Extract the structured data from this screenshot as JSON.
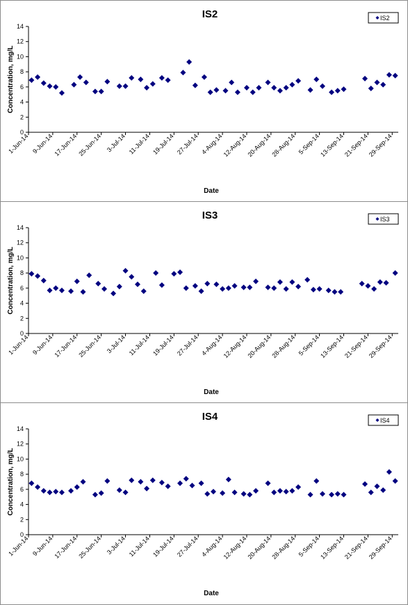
{
  "chart_data": [
    {
      "type": "scatter",
      "title": "IS2",
      "xlabel": "Date",
      "ylabel": "Concentration, mg/L",
      "ylim": [
        0,
        14
      ],
      "yticks": [
        "0",
        "2",
        "4",
        "6",
        "8",
        "10",
        "12",
        "14"
      ],
      "xlim": [
        "2014-06-01",
        "2014-10-01"
      ],
      "xticks": [
        "1-Jun-14",
        "9-Jun-14",
        "17-Jun-14",
        "25-Jun-14",
        "3-Jul-14",
        "11-Jul-14",
        "19-Jul-14",
        "27-Jul-14",
        "4-Aug-14",
        "12-Aug-14",
        "20-Aug-14",
        "28-Aug-14",
        "5-Sep-14",
        "13-Sep-14",
        "21-Sep-14",
        "29-Sep-14"
      ],
      "xtick_dates": [
        "2014-06-01",
        "2014-06-09",
        "2014-06-17",
        "2014-06-25",
        "2014-07-03",
        "2014-07-11",
        "2014-07-19",
        "2014-07-27",
        "2014-08-04",
        "2014-08-12",
        "2014-08-20",
        "2014-08-28",
        "2014-09-05",
        "2014-09-13",
        "2014-09-21",
        "2014-09-29"
      ],
      "grid": false,
      "legend": "top-right",
      "color": "#000080",
      "series": [
        {
          "name": "IS2",
          "x": [
            "2014-06-02",
            "2014-06-04",
            "2014-06-06",
            "2014-06-08",
            "2014-06-10",
            "2014-06-12",
            "2014-06-16",
            "2014-06-18",
            "2014-06-20",
            "2014-06-23",
            "2014-06-25",
            "2014-06-27",
            "2014-07-01",
            "2014-07-03",
            "2014-07-05",
            "2014-07-08",
            "2014-07-10",
            "2014-07-12",
            "2014-07-15",
            "2014-07-17",
            "2014-07-22",
            "2014-07-24",
            "2014-07-26",
            "2014-07-29",
            "2014-07-31",
            "2014-08-02",
            "2014-08-05",
            "2014-08-07",
            "2014-08-09",
            "2014-08-12",
            "2014-08-14",
            "2014-08-16",
            "2014-08-19",
            "2014-08-21",
            "2014-08-23",
            "2014-08-25",
            "2014-08-27",
            "2014-08-29",
            "2014-09-02",
            "2014-09-04",
            "2014-09-06",
            "2014-09-09",
            "2014-09-11",
            "2014-09-13",
            "2014-09-20",
            "2014-09-22",
            "2014-09-24",
            "2014-09-26",
            "2014-09-28",
            "2014-09-30"
          ],
          "y": [
            6.9,
            7.3,
            6.5,
            6.1,
            6.0,
            5.2,
            6.3,
            7.3,
            6.6,
            5.4,
            5.4,
            6.7,
            6.1,
            6.1,
            7.2,
            7.0,
            5.9,
            6.4,
            7.2,
            6.9,
            7.9,
            9.3,
            6.2,
            7.3,
            5.3,
            5.6,
            5.5,
            6.6,
            5.3,
            5.9,
            5.3,
            5.9,
            6.6,
            5.9,
            5.5,
            5.9,
            6.3,
            6.8,
            5.6,
            7.0,
            6.1,
            5.3,
            5.5,
            5.7,
            7.1,
            5.8,
            6.6,
            6.3,
            7.6,
            7.5
          ]
        }
      ]
    },
    {
      "type": "scatter",
      "title": "IS3",
      "xlabel": "Date",
      "ylabel": "Concentration, mg/L",
      "ylim": [
        0,
        14
      ],
      "yticks": [
        "0",
        "2",
        "4",
        "6",
        "8",
        "10",
        "12",
        "14"
      ],
      "xlim": [
        "2014-06-01",
        "2014-10-01"
      ],
      "xticks": [
        "1-Jun-14",
        "9-Jun-14",
        "17-Jun-14",
        "25-Jun-14",
        "3-Jul-14",
        "11-Jul-14",
        "19-Jul-14",
        "27-Jul-14",
        "4-Aug-14",
        "12-Aug-14",
        "20-Aug-14",
        "28-Aug-14",
        "5-Sep-14",
        "13-Sep-14",
        "21-Sep-14",
        "29-Sep-14"
      ],
      "xtick_dates": [
        "2014-06-01",
        "2014-06-09",
        "2014-06-17",
        "2014-06-25",
        "2014-07-03",
        "2014-07-11",
        "2014-07-19",
        "2014-07-27",
        "2014-08-04",
        "2014-08-12",
        "2014-08-20",
        "2014-08-28",
        "2014-09-05",
        "2014-09-13",
        "2014-09-21",
        "2014-09-29"
      ],
      "grid": false,
      "legend": "top-right",
      "color": "#000080",
      "series": [
        {
          "name": "IS3",
          "x": [
            "2014-06-02",
            "2014-06-04",
            "2014-06-06",
            "2014-06-08",
            "2014-06-10",
            "2014-06-12",
            "2014-06-15",
            "2014-06-17",
            "2014-06-19",
            "2014-06-21",
            "2014-06-24",
            "2014-06-26",
            "2014-06-29",
            "2014-07-01",
            "2014-07-03",
            "2014-07-05",
            "2014-07-07",
            "2014-07-09",
            "2014-07-13",
            "2014-07-15",
            "2014-07-19",
            "2014-07-21",
            "2014-07-23",
            "2014-07-26",
            "2014-07-28",
            "2014-07-30",
            "2014-08-02",
            "2014-08-04",
            "2014-08-06",
            "2014-08-08",
            "2014-08-11",
            "2014-08-13",
            "2014-08-15",
            "2014-08-19",
            "2014-08-21",
            "2014-08-23",
            "2014-08-25",
            "2014-08-27",
            "2014-08-29",
            "2014-09-01",
            "2014-09-03",
            "2014-09-05",
            "2014-09-08",
            "2014-09-10",
            "2014-09-12",
            "2014-09-19",
            "2014-09-21",
            "2014-09-23",
            "2014-09-25",
            "2014-09-27",
            "2014-09-30"
          ],
          "y": [
            7.9,
            7.6,
            7.0,
            5.7,
            6.0,
            5.7,
            5.6,
            6.9,
            5.5,
            7.7,
            6.6,
            5.9,
            5.3,
            6.2,
            8.3,
            7.5,
            6.5,
            5.6,
            8.0,
            6.4,
            7.9,
            8.1,
            6.0,
            6.3,
            5.6,
            6.6,
            6.5,
            5.9,
            6.0,
            6.3,
            6.1,
            6.1,
            6.9,
            6.1,
            6.0,
            6.8,
            5.9,
            6.8,
            6.2,
            7.1,
            5.8,
            5.9,
            5.7,
            5.5,
            5.5,
            6.6,
            6.3,
            5.9,
            6.8,
            6.7,
            8.0
          ]
        }
      ]
    },
    {
      "type": "scatter",
      "title": "IS4",
      "xlabel": "Date",
      "ylabel": "Concentration, mg/L",
      "ylim": [
        0,
        14
      ],
      "yticks": [
        "0",
        "2",
        "4",
        "6",
        "8",
        "10",
        "12",
        "14"
      ],
      "xlim": [
        "2014-06-01",
        "2014-10-01"
      ],
      "xticks": [
        "1-Jun-14",
        "9-Jun-14",
        "17-Jun-14",
        "25-Jun-14",
        "3-Jul-14",
        "11-Jul-14",
        "19-Jul-14",
        "27-Jul-14",
        "4-Aug-14",
        "12-Aug-14",
        "20-Aug-14",
        "28-Aug-14",
        "5-Sep-14",
        "13-Sep-14",
        "21-Sep-14",
        "29-Sep-14"
      ],
      "xtick_dates": [
        "2014-06-01",
        "2014-06-09",
        "2014-06-17",
        "2014-06-25",
        "2014-07-03",
        "2014-07-11",
        "2014-07-19",
        "2014-07-27",
        "2014-08-04",
        "2014-08-12",
        "2014-08-20",
        "2014-08-28",
        "2014-09-05",
        "2014-09-13",
        "2014-09-21",
        "2014-09-29"
      ],
      "grid": false,
      "legend": "top-right",
      "color": "#000080",
      "series": [
        {
          "name": "IS4",
          "x": [
            "2014-06-02",
            "2014-06-04",
            "2014-06-06",
            "2014-06-08",
            "2014-06-10",
            "2014-06-12",
            "2014-06-15",
            "2014-06-17",
            "2014-06-19",
            "2014-06-23",
            "2014-06-25",
            "2014-06-27",
            "2014-07-01",
            "2014-07-03",
            "2014-07-05",
            "2014-07-08",
            "2014-07-10",
            "2014-07-12",
            "2014-07-15",
            "2014-07-17",
            "2014-07-21",
            "2014-07-23",
            "2014-07-25",
            "2014-07-28",
            "2014-07-30",
            "2014-08-01",
            "2014-08-04",
            "2014-08-06",
            "2014-08-08",
            "2014-08-11",
            "2014-08-13",
            "2014-08-15",
            "2014-08-19",
            "2014-08-21",
            "2014-08-23",
            "2014-08-25",
            "2014-08-27",
            "2014-08-29",
            "2014-09-02",
            "2014-09-04",
            "2014-09-06",
            "2014-09-09",
            "2014-09-11",
            "2014-09-13",
            "2014-09-20",
            "2014-09-22",
            "2014-09-24",
            "2014-09-26",
            "2014-09-28",
            "2014-09-30"
          ],
          "y": [
            6.8,
            6.3,
            5.8,
            5.6,
            5.7,
            5.6,
            5.8,
            6.3,
            7.0,
            5.3,
            5.5,
            7.1,
            5.9,
            5.6,
            7.2,
            7.0,
            6.1,
            7.2,
            6.9,
            6.4,
            6.8,
            7.4,
            6.5,
            6.8,
            5.4,
            5.7,
            5.5,
            7.3,
            5.6,
            5.4,
            5.3,
            5.8,
            6.8,
            5.6,
            5.8,
            5.7,
            5.8,
            6.3,
            5.3,
            7.1,
            5.4,
            5.3,
            5.4,
            5.3,
            6.7,
            5.6,
            6.4,
            5.9,
            8.3,
            7.1
          ]
        }
      ]
    }
  ]
}
